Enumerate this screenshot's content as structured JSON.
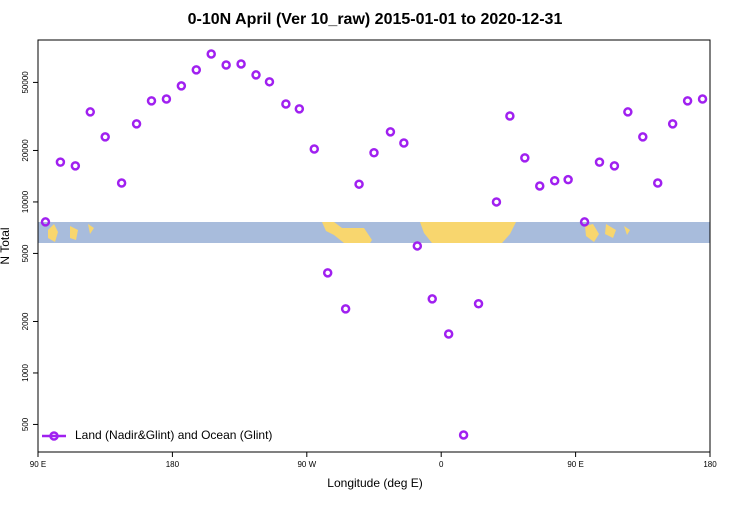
{
  "chart_data": {
    "type": "scatter",
    "title": "0-10N April (Ver 10_raw)   2015-01-01 to 2020-12-31",
    "x_label": "Longitude (deg E)",
    "y_label": "N Total",
    "xlim": [
      90,
      540
    ],
    "ylim": [
      345,
      88500
    ],
    "yscale": "log",
    "legend": "bottom-left",
    "xticks": [
      {
        "value": 90,
        "label": "90 E"
      },
      180,
      {
        "value": 270,
        "label": "90 W"
      },
      {
        "value": 360,
        "label": "0"
      },
      {
        "value": 450,
        "label": "90 E"
      },
      {
        "value": 540,
        "label": "180"
      }
    ],
    "yticks": [
      500,
      1000,
      2000,
      5000,
      10000,
      20000,
      50000
    ],
    "series": [
      {
        "name": "Land (Nadir&Glint) and Ocean (Glint)",
        "color": "#a020f0",
        "x": [
          95,
          105,
          115,
          125,
          135,
          146,
          156,
          166,
          176,
          186,
          196,
          206,
          216,
          226,
          236,
          245,
          256,
          265,
          275,
          284,
          296,
          305,
          315,
          326,
          335,
          344,
          354,
          365,
          375,
          385,
          397,
          406,
          416,
          426,
          436,
          445,
          456,
          466,
          476,
          485,
          495,
          505,
          515,
          525,
          535
        ],
        "values": [
          7640,
          17100,
          16250,
          33600,
          24000,
          12900,
          28600,
          39000,
          40000,
          47700,
          59200,
          73300,
          63200,
          64100,
          55300,
          50400,
          37400,
          35000,
          20400,
          3850,
          2370,
          12700,
          19400,
          25700,
          22100,
          5530,
          2710,
          1690,
          434,
          2540,
          10000,
          31800,
          18100,
          12400,
          13300,
          13500,
          7640,
          17100,
          16250,
          33600,
          24000,
          12900,
          28600,
          39000,
          40000
        ]
      }
    ]
  }
}
